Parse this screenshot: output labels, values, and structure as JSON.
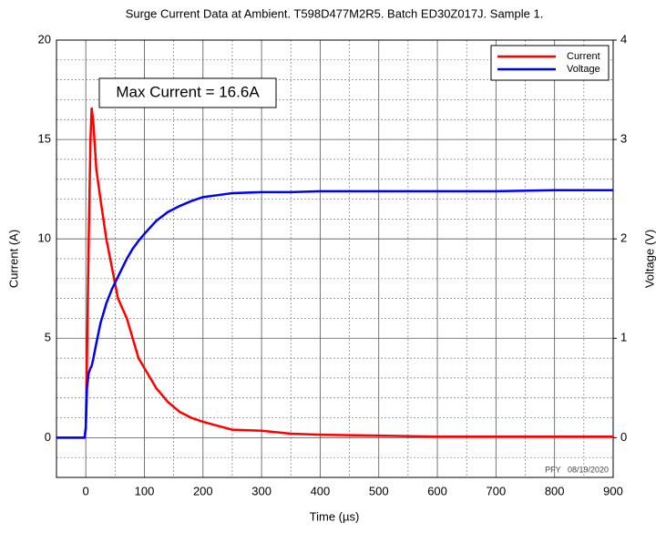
{
  "chart_data": {
    "type": "line",
    "title": "Surge Current Data at Ambient. T598D477M2R5. Batch ED30Z017J. Sample 1.",
    "x_label": "Time (µs)",
    "y_label": "Current (A)",
    "y2_label": "Voltage (V)",
    "annotation": "Max Current = 16.6A",
    "footnote": "PFY   08/19/2020",
    "x": [
      -50,
      -2,
      0,
      2,
      5,
      8,
      10,
      13,
      18,
      25,
      35,
      45,
      55,
      70,
      80,
      90,
      100,
      120,
      140,
      160,
      180,
      200,
      225,
      250,
      300,
      350,
      400,
      500,
      600,
      700,
      800,
      900
    ],
    "series": [
      {
        "name": "Current",
        "color": "#ff0000",
        "values": [
          0,
          0,
          0.5,
          4,
          10,
          15,
          16.6,
          15.8,
          13.5,
          12,
          10,
          8.5,
          7,
          6,
          5,
          4,
          3.5,
          2.5,
          1.8,
          1.3,
          1.0,
          0.8,
          0.6,
          0.4,
          0.35,
          0.2,
          0.15,
          0.1,
          0.05,
          0.05,
          0.05,
          0.05
        ]
      },
      {
        "name": "Voltage",
        "color": "#0000ff",
        "axis": "y2",
        "values": [
          0,
          0,
          0.1,
          0.5,
          0.65,
          0.7,
          0.72,
          0.8,
          0.95,
          1.15,
          1.35,
          1.5,
          1.62,
          1.8,
          1.9,
          1.98,
          2.05,
          2.18,
          2.27,
          2.33,
          2.38,
          2.42,
          2.44,
          2.46,
          2.47,
          2.47,
          2.48,
          2.48,
          2.48,
          2.48,
          2.49,
          2.49
        ]
      }
    ],
    "xlim": [
      -50,
      900
    ],
    "xticks": [
      0,
      100,
      200,
      300,
      400,
      500,
      600,
      700,
      800,
      900
    ],
    "ylim": [
      -2,
      20
    ],
    "yticks": [
      0,
      5,
      10,
      15,
      20
    ],
    "y2lim": [
      -0.4,
      4
    ],
    "y2ticks": [
      0,
      1,
      2,
      3,
      4
    ],
    "grid": true,
    "legend": "upper-right"
  }
}
